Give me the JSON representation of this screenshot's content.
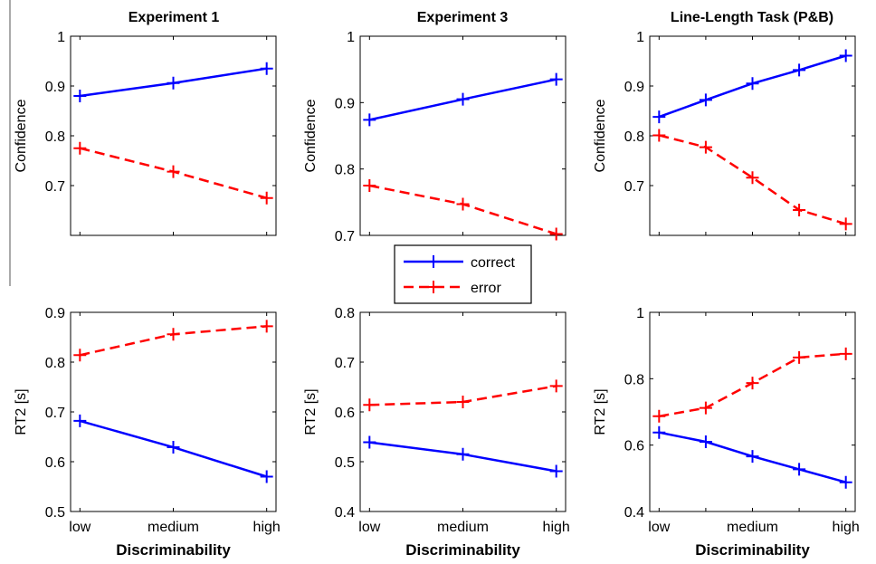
{
  "colors": {
    "correct": "#0000ff",
    "error": "#ff0000"
  },
  "legend": {
    "placement": "center",
    "entries": [
      "correct",
      "error"
    ]
  },
  "chart_data": [
    {
      "type": "line",
      "title": "Experiment 1",
      "xlabel": "",
      "ylabel": "Confidence",
      "categories": [
        "low",
        "medium",
        "high"
      ],
      "x": [
        1,
        2,
        3
      ],
      "xticklabels": [],
      "ylim": [
        0.6,
        1.0
      ],
      "yticks": [
        0.7,
        0.8,
        0.9,
        1.0
      ],
      "yticklabels": [
        "0.7",
        "0.8",
        "0.9",
        "1"
      ],
      "series": [
        {
          "name": "correct",
          "values": [
            0.88,
            0.906,
            0.935
          ]
        },
        {
          "name": "error",
          "values": [
            0.775,
            0.728,
            0.675
          ]
        }
      ]
    },
    {
      "type": "line",
      "title": "Experiment 3",
      "xlabel": "",
      "ylabel": "Confidence",
      "categories": [
        "low",
        "medium",
        "high"
      ],
      "x": [
        1,
        2,
        3
      ],
      "xticklabels": [],
      "ylim": [
        0.7,
        1.0
      ],
      "yticks": [
        0.7,
        0.8,
        0.9,
        1.0
      ],
      "yticklabels": [
        "0.7",
        "0.8",
        "0.9",
        "1"
      ],
      "series": [
        {
          "name": "correct",
          "values": [
            0.874,
            0.905,
            0.935
          ]
        },
        {
          "name": "error",
          "values": [
            0.775,
            0.747,
            0.702
          ]
        }
      ]
    },
    {
      "type": "line",
      "title": "Line-Length Task (P&B)",
      "xlabel": "",
      "ylabel": "Confidence",
      "categories": [
        "low",
        "medium",
        "high"
      ],
      "x": [
        1,
        2,
        3,
        4,
        5
      ],
      "xticklabels": [],
      "ylim": [
        0.6,
        1.0
      ],
      "yticks": [
        0.7,
        0.8,
        0.9,
        1.0
      ],
      "yticklabels": [
        "0.7",
        "0.8",
        "0.9",
        "1"
      ],
      "series": [
        {
          "name": "correct",
          "values": [
            0.838,
            0.872,
            0.905,
            0.932,
            0.961
          ]
        },
        {
          "name": "error",
          "values": [
            0.801,
            0.777,
            0.716,
            0.651,
            0.623
          ]
        }
      ]
    },
    {
      "type": "line",
      "title": "",
      "xlabel": "Discriminability",
      "ylabel": "RT2 [s]",
      "categories": [
        "low",
        "medium",
        "high"
      ],
      "x": [
        1,
        2,
        3
      ],
      "xticklabels": [
        "low",
        "medium",
        "high"
      ],
      "ylim": [
        0.5,
        0.9
      ],
      "yticks": [
        0.5,
        0.6,
        0.7,
        0.8,
        0.9
      ],
      "yticklabels": [
        "0.5",
        "0.6",
        "0.7",
        "0.8",
        "0.9"
      ],
      "series": [
        {
          "name": "correct",
          "values": [
            0.682,
            0.629,
            0.57
          ]
        },
        {
          "name": "error",
          "values": [
            0.814,
            0.856,
            0.872
          ]
        }
      ]
    },
    {
      "type": "line",
      "title": "",
      "xlabel": "Discriminability",
      "ylabel": "RT2 [s]",
      "categories": [
        "low",
        "medium",
        "high"
      ],
      "x": [
        1,
        2,
        3
      ],
      "xticklabels": [
        "low",
        "medium",
        "high"
      ],
      "ylim": [
        0.4,
        0.8
      ],
      "yticks": [
        0.4,
        0.5,
        0.6,
        0.7,
        0.8
      ],
      "yticklabels": [
        "0.4",
        "0.5",
        "0.6",
        "0.7",
        "0.8"
      ],
      "series": [
        {
          "name": "correct",
          "values": [
            0.539,
            0.515,
            0.481
          ]
        },
        {
          "name": "error",
          "values": [
            0.614,
            0.62,
            0.652
          ]
        }
      ]
    },
    {
      "type": "line",
      "title": "",
      "xlabel": "Discriminability",
      "ylabel": "RT2 [s]",
      "categories": [
        "low",
        "medium",
        "high"
      ],
      "x": [
        1,
        2,
        3,
        4,
        5
      ],
      "xticklabels": [
        "low",
        "medium",
        "high"
      ],
      "ylim": [
        0.4,
        1.0
      ],
      "yticks": [
        0.4,
        0.6,
        0.8,
        1.0
      ],
      "yticklabels": [
        "0.4",
        "0.6",
        "0.8",
        "1"
      ],
      "series": [
        {
          "name": "correct",
          "values": [
            0.638,
            0.61,
            0.566,
            0.527,
            0.488
          ]
        },
        {
          "name": "error",
          "values": [
            0.687,
            0.712,
            0.787,
            0.864,
            0.875
          ]
        }
      ]
    }
  ]
}
